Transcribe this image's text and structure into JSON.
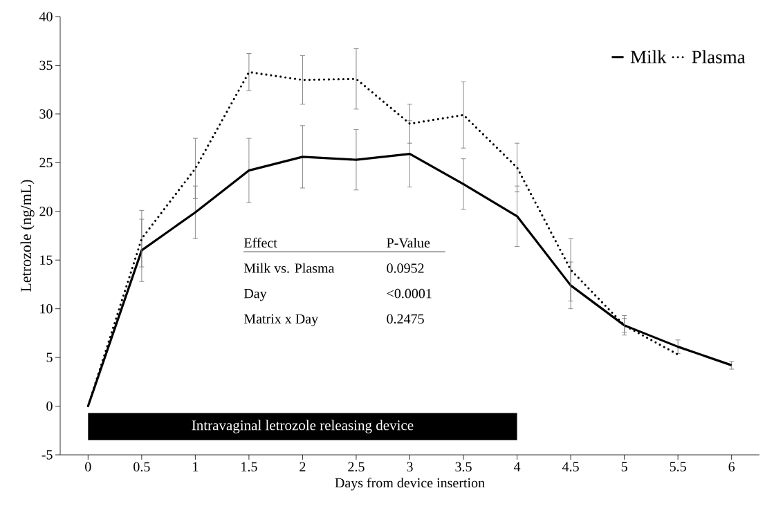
{
  "chart_data": {
    "type": "line",
    "xlabel": "Days from device insertion",
    "ylabel": "Letrozole (ng/mL)",
    "x": [
      0,
      0.5,
      1,
      1.5,
      2,
      2.5,
      3,
      3.5,
      4,
      4.5,
      5,
      5.5,
      6
    ],
    "series": [
      {
        "name": "Milk",
        "color": "#000000",
        "line_style": "solid",
        "values": [
          0,
          16.0,
          19.9,
          24.2,
          25.6,
          25.3,
          25.9,
          22.8,
          19.5,
          12.4,
          8.3,
          6.1,
          4.2
        ],
        "errors": [
          null,
          3.2,
          2.7,
          3.3,
          3.2,
          3.1,
          3.4,
          2.6,
          3.1,
          2.4,
          0.7,
          0.7,
          0.4
        ]
      },
      {
        "name": "Plasma",
        "color": "#000000",
        "line_style": "dotted",
        "values": [
          0,
          17.2,
          24.4,
          34.3,
          33.5,
          33.6,
          29.0,
          29.9,
          24.5,
          14.0,
          8.3,
          5.3,
          null
        ],
        "errors": [
          null,
          2.9,
          3.1,
          1.9,
          2.5,
          3.1,
          2.0,
          3.4,
          2.5,
          3.2,
          1.0,
          null,
          null
        ]
      }
    ],
    "xlim": [
      -0.26,
      6.26
    ],
    "xticks": [
      0,
      0.5,
      1,
      1.5,
      2,
      2.5,
      3,
      3.5,
      4,
      4.5,
      5,
      5.5,
      6
    ],
    "ylim": [
      -5,
      40
    ],
    "yticks": [
      -5,
      0,
      5,
      10,
      15,
      20,
      25,
      30,
      35,
      40
    ],
    "bands": [
      {
        "axis": "x",
        "from": 0,
        "to": 4,
        "label": "Intravaginal letrozole releasing device",
        "color": "#000000"
      }
    ],
    "annotations": [
      "Effect",
      "P-Value",
      "Milk vs. Plasma",
      "0.0952",
      "Day",
      "<0.0001",
      "Matrix x Day",
      "0.2475"
    ],
    "legend": "top right",
    "grid": false,
    "marker": "none"
  }
}
